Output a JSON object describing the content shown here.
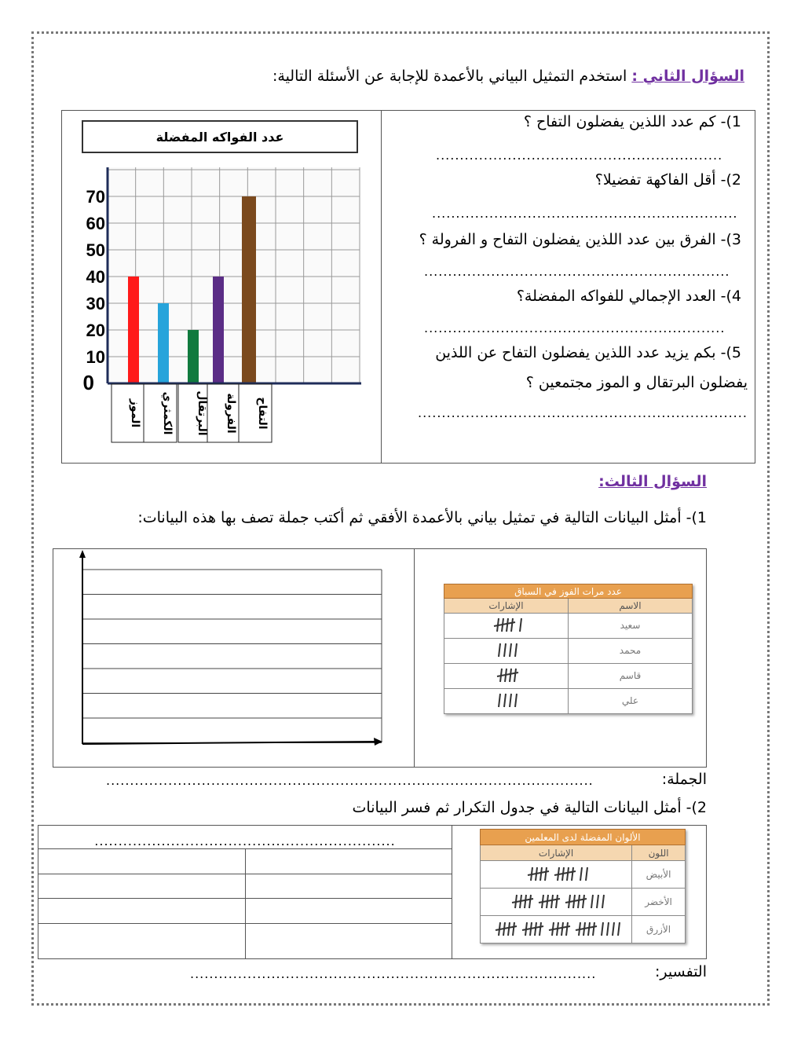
{
  "q2": {
    "heading": "السؤال الثاني :",
    "instruction": "استخدم التمثيل البياني بالأعمدة للإجابة عن الأسئلة التالية:",
    "questions": [
      {
        "text": "1)- كم عدد اللذين يفضلون التفاح ؟",
        "answer": "............................................................"
      },
      {
        "text": "2)- أقل الفاكهة  تفضيلا؟",
        "answer": "................................................................"
      },
      {
        "text": "3)- الفرق بين عدد اللذين يفضلون التفاح و الفرولة  ؟",
        "answer": "................................................................"
      },
      {
        "text": "4)- العدد الإجمالي للفواكه المفضلة؟",
        "answer": "..............................................................."
      },
      {
        "text": "5)- بكم يزيد عدد اللذين يفضلون التفاح عن اللذين",
        "text2": "يفضلون البرتقال و الموز مجتمعين ؟",
        "answer": "....................................................................."
      }
    ]
  },
  "chart_data": {
    "type": "bar",
    "title": "عدد الفواكه المفضلة",
    "categories": [
      "الموز",
      "الكمثري",
      "البرتقال",
      "الفرولة",
      "التفاح"
    ],
    "values": [
      40,
      30,
      20,
      40,
      70
    ],
    "colors": [
      "#ff1a1a",
      "#27a4db",
      "#107a3e",
      "#5b2d86",
      "#7b4a1e"
    ],
    "yticks": [
      0,
      10,
      20,
      30,
      40,
      50,
      60,
      70
    ],
    "ylim": [
      0,
      80
    ],
    "grid": true
  },
  "q3": {
    "heading": "السؤال الثالث:",
    "task1": "1)- أمثل البيانات التالية في تمثيل بياني بالأعمدة الأفقي ثم أكتب جملة تصف بها هذه البيانات:",
    "table1": {
      "title": "عدد مرات الفوز في السباق",
      "col_name": "الاسم",
      "col_tally": "الإشارات",
      "rows": [
        {
          "name": "سعيد",
          "count": 6
        },
        {
          "name": "محمد",
          "count": 4
        },
        {
          "name": "قاسم",
          "count": 5
        },
        {
          "name": "علي",
          "count": 4
        }
      ]
    },
    "sentence_label": "الجملة:",
    "sentence_dots": "......................................................................................................",
    "task2": "2)- أمثل البيانات التالية في جدول التكرار ثم فسر البيانات",
    "freq_header_dots": "...............................................................",
    "table2": {
      "title": "الألوان المفضلة لدى المعلمين",
      "col_name": "اللون",
      "col_tally": "الإشارات",
      "rows": [
        {
          "name": "الأبيض",
          "count": 12
        },
        {
          "name": "الأخضر",
          "count": 18
        },
        {
          "name": "الأزرق",
          "count": 24
        }
      ]
    },
    "explain_label": "التفسير:",
    "explain_dots": "....................................................................................."
  }
}
